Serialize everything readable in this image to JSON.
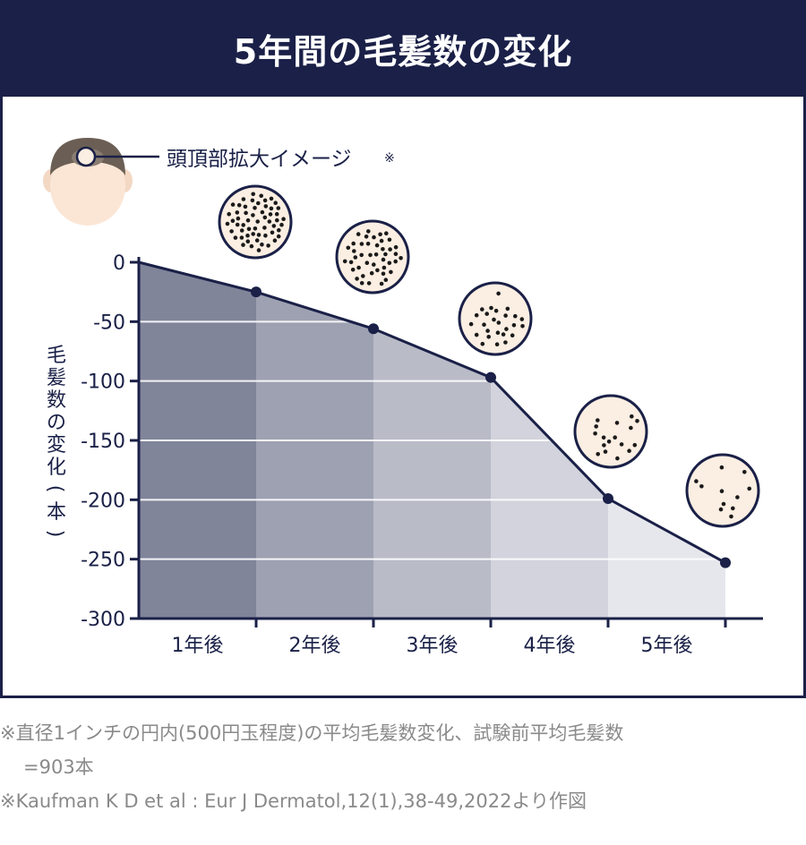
{
  "header": {
    "title": "5年間の毛髪数の変化"
  },
  "legend": {
    "label": "頭頂部拡大イメージ",
    "mark": "※",
    "icon": "head-top-icon"
  },
  "chart_data": {
    "type": "area",
    "title": "5年間の毛髪数の変化",
    "ylabel_chars": [
      "毛",
      "髪",
      "数",
      "の",
      "変",
      "化",
      "(",
      "本",
      ")"
    ],
    "categories": [
      "1年後",
      "2年後",
      "3年後",
      "4年後",
      "5年後"
    ],
    "x": [
      0,
      1,
      2,
      3,
      4,
      5
    ],
    "values": [
      0,
      -25,
      -56,
      -97,
      -199,
      -253
    ],
    "ylim": [
      -300,
      0
    ],
    "yticks": [
      0,
      -50,
      -100,
      -150,
      -200,
      -250,
      -300
    ],
    "grid": true,
    "band_colors": [
      "#81859a",
      "#9ea1b1",
      "#b9bbc7",
      "#d2d3dc",
      "#e6e7ec"
    ],
    "line_color": "#1a2047",
    "scalp_dots": [
      62,
      44,
      26,
      17,
      11
    ]
  },
  "footnotes": {
    "line1": "※直径1インチの円内(500円玉程度)の平均毛髪数変化、試験前平均毛髪数",
    "line2": "=903本",
    "line3": "※Kaufman K D et al : Eur J Dermatol,12(1),38-49,2022より作図"
  },
  "colors": {
    "navy": "#1a2047",
    "scalp": "#fbeee2",
    "hair": "#6b5f55",
    "skin": "#fbe6d6"
  }
}
